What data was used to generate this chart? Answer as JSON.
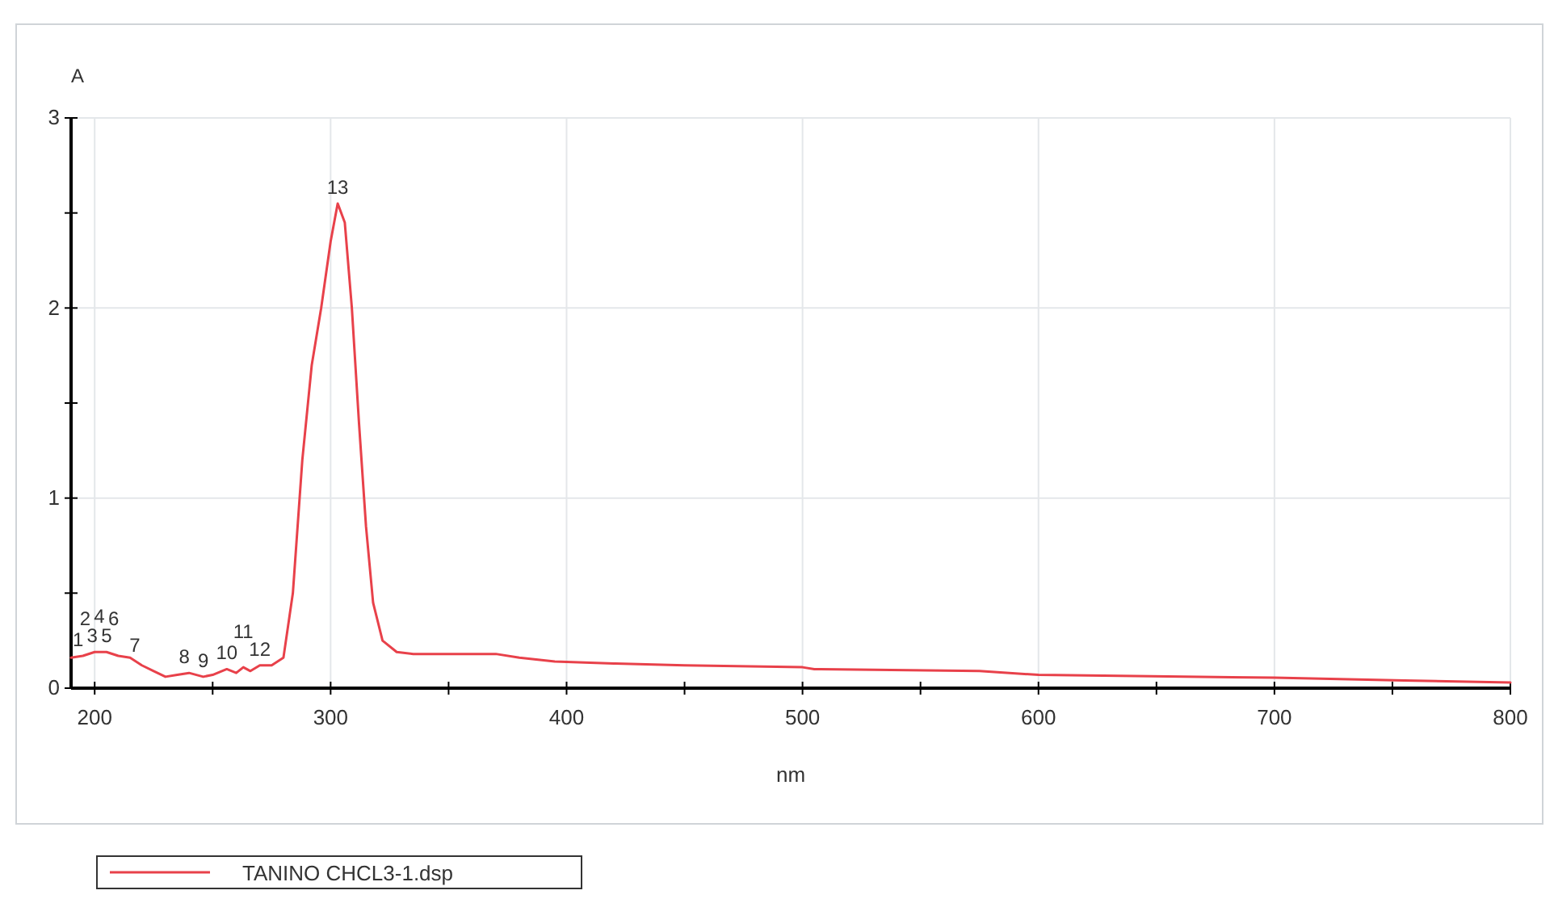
{
  "chart_data": {
    "type": "line",
    "xlabel": "nm",
    "ylabel": "A",
    "xlim": [
      190,
      800
    ],
    "xticks": [
      200,
      {
        "value": 250,
        "label": null
      },
      300,
      {
        "value": 350,
        "label": null
      },
      400,
      {
        "value": 450,
        "label": null
      },
      500,
      {
        "value": 550,
        "label": null
      },
      600,
      {
        "value": 650,
        "label": null
      },
      700,
      {
        "value": 750,
        "label": null
      },
      800
    ],
    "ylim": [
      0,
      3
    ],
    "yticks": [
      0,
      {
        "value": 0.5,
        "label": null
      },
      1,
      {
        "value": 1.5,
        "label": null
      },
      2,
      {
        "value": 2.5,
        "label": null
      },
      3
    ],
    "grid": true,
    "legend": "bottom left",
    "marker": "none",
    "line_style": "solid",
    "series": [
      {
        "name": "TANINO CHCL3-1.dsp",
        "color": "#e8414a",
        "x": [
          190,
          195,
          200,
          205,
          210,
          215,
          220,
          225,
          230,
          235,
          240,
          246,
          250,
          256,
          260,
          263,
          266,
          270,
          275,
          280,
          284,
          288,
          292,
          296,
          300,
          303,
          306,
          309,
          312,
          315,
          318,
          322,
          328,
          335,
          370,
          380,
          395,
          420,
          450,
          500,
          505,
          575,
          600,
          700,
          755,
          800
        ],
        "values": [
          0.16,
          0.17,
          0.19,
          0.19,
          0.17,
          0.16,
          0.12,
          0.09,
          0.06,
          0.07,
          0.08,
          0.06,
          0.07,
          0.1,
          0.08,
          0.11,
          0.09,
          0.12,
          0.12,
          0.16,
          0.5,
          1.2,
          1.7,
          2.0,
          2.35,
          2.55,
          2.45,
          2.0,
          1.4,
          0.85,
          0.45,
          0.25,
          0.19,
          0.18,
          0.18,
          0.16,
          0.14,
          0.13,
          0.12,
          0.11,
          0.1,
          0.09,
          0.07,
          0.055,
          0.04,
          0.03
        ]
      }
    ],
    "annotations": [
      {
        "text": "1",
        "x": 193,
        "y": 0.17
      },
      {
        "text": "2",
        "x": 196,
        "y": 0.18
      },
      {
        "text": "3",
        "x": 199,
        "y": 0.19
      },
      {
        "text": "4",
        "x": 202,
        "y": 0.19
      },
      {
        "text": "5",
        "x": 205,
        "y": 0.19
      },
      {
        "text": "6",
        "x": 208,
        "y": 0.18
      },
      {
        "text": "7",
        "x": 217,
        "y": 0.14
      },
      {
        "text": "8",
        "x": 238,
        "y": 0.08
      },
      {
        "text": "9",
        "x": 246,
        "y": 0.06
      },
      {
        "text": "10",
        "x": 256,
        "y": 0.1
      },
      {
        "text": "11",
        "x": 263,
        "y": 0.11
      },
      {
        "text": "12",
        "x": 270,
        "y": 0.12
      },
      {
        "text": "13",
        "x": 303,
        "y": 2.55
      }
    ]
  }
}
